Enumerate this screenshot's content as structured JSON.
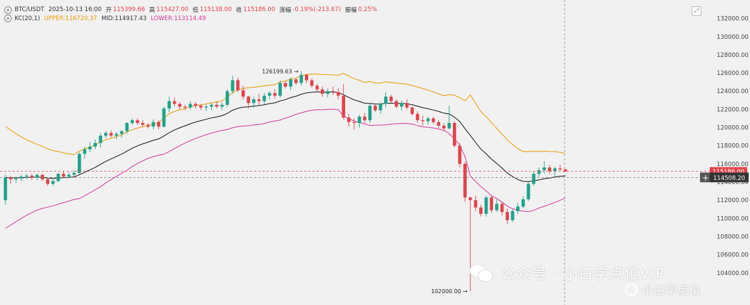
{
  "legend": {
    "pair": "BTC/USDT",
    "datetime": "2025-10-13 16:00",
    "open_label": "开",
    "open": "115399.66",
    "high_label": "高",
    "high": "115427.00",
    "low_label": "低",
    "low": "115138.00",
    "close_label": "收",
    "close": "115186.00",
    "change_label": "涨幅",
    "change": "-0.19%(-213.67)",
    "amp_label": "振幅",
    "amp": "0.25%",
    "kc_name": "KC(20,1)",
    "upper": "UPPER:116720.37",
    "mid": "MID:114917.43",
    "lower": "LOWER:113114.49"
  },
  "watermark": {
    "main": "公众号 · 小白学点位VIP",
    "sub": "小白学点位"
  },
  "colors": {
    "up": "#1ca38a",
    "down": "#e0434c",
    "upper": "#e89a00",
    "mid": "#111111",
    "lower": "#d4399b"
  },
  "chart_data": {
    "type": "candlestick",
    "ylim": [
      101000,
      133500
    ],
    "y_ticks": [
      104000,
      106000,
      108000,
      110000,
      112000,
      114000,
      116000,
      118000,
      120000,
      122000,
      124000,
      126000,
      128000,
      130000,
      132000
    ],
    "current_price": "115186.00",
    "crosshair_price": "114508.20",
    "annotations": [
      {
        "text": "126199.63",
        "candle": 56,
        "value": 126199.63,
        "side": "left"
      },
      {
        "text": "102000.00",
        "candle": 88,
        "value": 102000.0,
        "side": "left"
      }
    ],
    "candles": [
      [
        112000,
        114800,
        111500,
        114500
      ],
      [
        114500,
        114700,
        113800,
        114300
      ],
      [
        114300,
        114600,
        113900,
        114400
      ],
      [
        114400,
        114800,
        114100,
        114600
      ],
      [
        114600,
        114900,
        114300,
        114700
      ],
      [
        114700,
        114900,
        114200,
        114500
      ],
      [
        114500,
        114900,
        114200,
        114800
      ],
      [
        114800,
        114900,
        114100,
        114300
      ],
      [
        114300,
        114400,
        113600,
        113800
      ],
      [
        113800,
        114400,
        113600,
        114100
      ],
      [
        114100,
        115000,
        114000,
        114900
      ],
      [
        114900,
        115200,
        114500,
        114600
      ],
      [
        114600,
        115100,
        114400,
        114800
      ],
      [
        114800,
        115300,
        114600,
        115000
      ],
      [
        115000,
        117300,
        114900,
        117100
      ],
      [
        117100,
        117900,
        116600,
        117600
      ],
      [
        117600,
        118400,
        117300,
        117900
      ],
      [
        117900,
        118700,
        117600,
        118300
      ],
      [
        118300,
        119400,
        117800,
        119100
      ],
      [
        119100,
        119600,
        118800,
        119400
      ],
      [
        119400,
        119700,
        118900,
        119100
      ],
      [
        119100,
        119500,
        118700,
        119300
      ],
      [
        119300,
        119700,
        118900,
        119600
      ],
      [
        119600,
        120600,
        119300,
        120500
      ],
      [
        120500,
        121000,
        120300,
        120800
      ],
      [
        120800,
        121000,
        120300,
        120500
      ],
      [
        120500,
        120800,
        120100,
        120300
      ],
      [
        120300,
        120500,
        119900,
        120100
      ],
      [
        120100,
        120900,
        119800,
        120600
      ],
      [
        120600,
        120800,
        119800,
        120100
      ],
      [
        120100,
        122300,
        120000,
        122100
      ],
      [
        122100,
        123400,
        121700,
        122900
      ],
      [
        122900,
        123300,
        122300,
        122600
      ],
      [
        122600,
        122800,
        122000,
        122300
      ],
      [
        122300,
        122500,
        121900,
        122200
      ],
      [
        122200,
        122900,
        121900,
        122600
      ],
      [
        122600,
        122800,
        122100,
        122400
      ],
      [
        122400,
        122600,
        121900,
        122200
      ],
      [
        122200,
        122500,
        121800,
        122300
      ],
      [
        122300,
        122700,
        121900,
        122500
      ],
      [
        122500,
        122900,
        122100,
        122300
      ],
      [
        122300,
        122800,
        121900,
        122500
      ],
      [
        122500,
        124200,
        122300,
        124000
      ],
      [
        124000,
        125700,
        123700,
        125200
      ],
      [
        125200,
        125500,
        123900,
        124100
      ],
      [
        124100,
        124600,
        123100,
        123400
      ],
      [
        123400,
        123500,
        122100,
        122700
      ],
      [
        122700,
        123400,
        122200,
        123100
      ],
      [
        123100,
        123700,
        122500,
        122900
      ],
      [
        122900,
        123800,
        122600,
        123500
      ],
      [
        123500,
        124000,
        123100,
        123800
      ],
      [
        123800,
        124200,
        123200,
        123500
      ],
      [
        123500,
        125200,
        123300,
        124900
      ],
      [
        124900,
        125100,
        124300,
        124500
      ],
      [
        124500,
        125500,
        124100,
        125300
      ],
      [
        125300,
        125400,
        124700,
        124900
      ],
      [
        124900,
        126200,
        124600,
        125800
      ],
      [
        125800,
        125900,
        124900,
        125200
      ],
      [
        125200,
        125400,
        124400,
        124600
      ],
      [
        124600,
        124800,
        123900,
        124200
      ],
      [
        124200,
        124500,
        123400,
        123700
      ],
      [
        123700,
        124300,
        123300,
        124000
      ],
      [
        124000,
        124500,
        123600,
        123900
      ],
      [
        123900,
        124300,
        123100,
        123500
      ],
      [
        123500,
        124800,
        120900,
        121100
      ],
      [
        121100,
        121500,
        120100,
        120600
      ],
      [
        120600,
        121000,
        119800,
        120500
      ],
      [
        120500,
        121400,
        120000,
        121200
      ],
      [
        121200,
        121600,
        120500,
        120800
      ],
      [
        120800,
        122700,
        120500,
        122400
      ],
      [
        122400,
        122500,
        121700,
        121900
      ],
      [
        121900,
        122800,
        121500,
        122600
      ],
      [
        122600,
        123900,
        122200,
        123400
      ],
      [
        123400,
        123600,
        122700,
        122900
      ],
      [
        122900,
        123100,
        122100,
        122300
      ],
      [
        122300,
        123000,
        121900,
        122700
      ],
      [
        122700,
        123100,
        122000,
        122200
      ],
      [
        122200,
        122300,
        121300,
        121500
      ],
      [
        121500,
        121800,
        120500,
        120800
      ],
      [
        120800,
        121300,
        120200,
        120700
      ],
      [
        120700,
        121200,
        120300,
        121000
      ],
      [
        121000,
        121200,
        120400,
        120600
      ],
      [
        120600,
        120800,
        119900,
        120200
      ],
      [
        120200,
        120500,
        119600,
        119900
      ],
      [
        119900,
        122400,
        119800,
        120500
      ],
      [
        120500,
        120700,
        117800,
        118000
      ],
      [
        118000,
        118300,
        115600,
        116000
      ],
      [
        116000,
        116200,
        111800,
        112300
      ],
      [
        112300,
        112400,
        102000,
        112000
      ],
      [
        112000,
        112500,
        110800,
        111200
      ],
      [
        111200,
        111500,
        110200,
        110500
      ],
      [
        110500,
        112500,
        110200,
        112300
      ],
      [
        112300,
        112500,
        110600,
        110900
      ],
      [
        110900,
        112100,
        110700,
        111600
      ],
      [
        111600,
        111800,
        110300,
        110700
      ],
      [
        110700,
        111100,
        109400,
        109800
      ],
      [
        109800,
        111000,
        109600,
        110800
      ],
      [
        110800,
        111700,
        110500,
        111300
      ],
      [
        111300,
        112400,
        111100,
        112100
      ],
      [
        112100,
        114000,
        111900,
        113800
      ],
      [
        113800,
        115200,
        113600,
        114900
      ],
      [
        114900,
        115600,
        114600,
        115300
      ],
      [
        115300,
        116300,
        114900,
        115600
      ],
      [
        115600,
        115900,
        114900,
        115200
      ],
      [
        115200,
        115700,
        114700,
        115500
      ],
      [
        115500,
        115900,
        115200,
        115400
      ],
      [
        115400,
        115430,
        115140,
        115186
      ]
    ]
  }
}
